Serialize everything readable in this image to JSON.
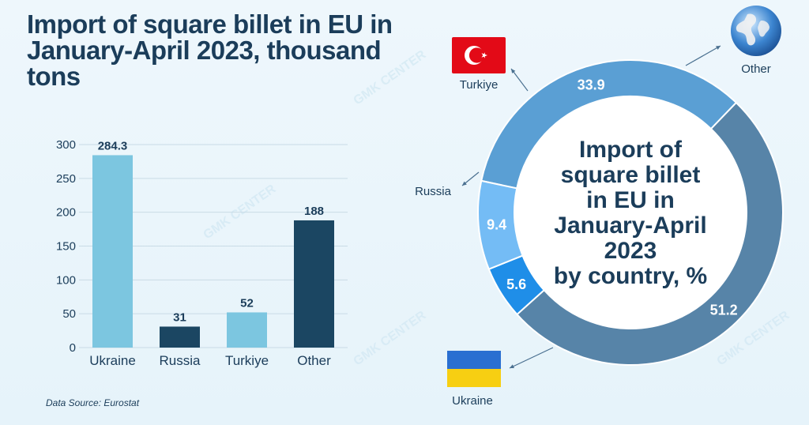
{
  "title": "Import of square billet in EU in January-April 2023, thousand tons",
  "source": "Data Source: Eurostat",
  "watermark": "GMK CENTER",
  "colors": {
    "light": "#7cc6e0",
    "dark": "#1b4662",
    "title": "#1b3d5a"
  },
  "chart_data": [
    {
      "type": "bar",
      "title": "Import of square billet in EU in January-April 2023, thousand tons",
      "categories": [
        "Ukraine",
        "Russia",
        "Turkiye",
        "Other"
      ],
      "values": [
        284.3,
        31,
        52,
        188
      ],
      "value_labels": [
        "284.3",
        "31",
        "52",
        "188"
      ],
      "bar_colors": [
        "#7cc6e0",
        "#1b4662",
        "#7cc6e0",
        "#1b4662"
      ],
      "ylim": [
        0,
        300
      ],
      "yticks": [
        0,
        50,
        100,
        150,
        200,
        250,
        300
      ],
      "grid": true,
      "xlabel": "",
      "ylabel": ""
    },
    {
      "type": "pie",
      "title": "Import of square billet in EU in January-April 2023 by country, %",
      "center_lines": [
        "Import of",
        "square billet",
        "in EU in",
        "January-April",
        "2023",
        "by country, %"
      ],
      "slices": [
        {
          "label": "Other",
          "value": 33.9,
          "value_label": "33.9",
          "color": "#5a9fd4"
        },
        {
          "label": "Ukraine",
          "value": 51.2,
          "value_label": "51.2",
          "color": "#5784a8"
        },
        {
          "label": "Russia",
          "value": 5.6,
          "value_label": "5.6",
          "color": "#1f8ee8"
        },
        {
          "label": "Turkiye",
          "value": 9.4,
          "value_label": "9.4",
          "color": "#74bcf5"
        }
      ]
    }
  ]
}
